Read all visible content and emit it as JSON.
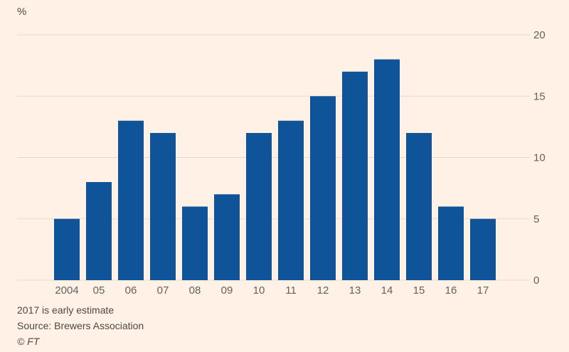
{
  "chart_data": {
    "type": "bar",
    "title": "",
    "xlabel": "",
    "ylabel": "%",
    "categories": [
      "2004",
      "05",
      "06",
      "07",
      "08",
      "09",
      "10",
      "11",
      "12",
      "13",
      "14",
      "15",
      "16",
      "17"
    ],
    "values": [
      5,
      8,
      13,
      12,
      6,
      7,
      12,
      13,
      15,
      17,
      18,
      12,
      6,
      5
    ],
    "ylim": [
      0,
      20
    ],
    "yticks": [
      0,
      5,
      10,
      15,
      20
    ],
    "grid": true,
    "y_axis_side": "right",
    "bar_color": "#0f5499",
    "notes": [
      "2017 is early estimate",
      "Source: Brewers Association",
      "© FT"
    ]
  }
}
